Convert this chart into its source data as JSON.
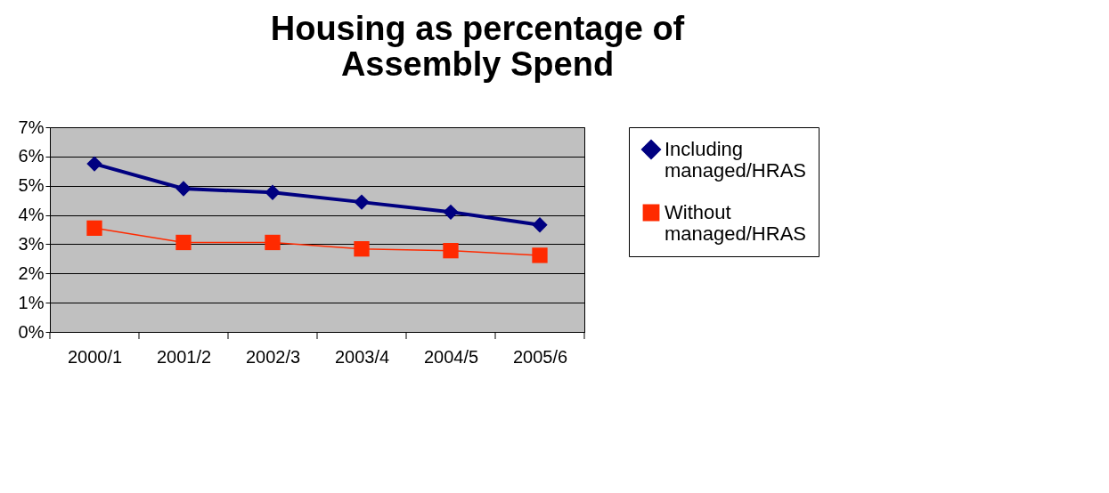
{
  "chart_data": {
    "type": "line",
    "title": "Housing as percentage of Assembly Spend",
    "categories": [
      "2000/1",
      "2001/2",
      "2002/3",
      "2003/4",
      "2004/5",
      "2005/6"
    ],
    "series": [
      {
        "name": "Including managed/HRAS",
        "color": "#000080",
        "marker": "diamond",
        "values": [
          5.75,
          4.9,
          4.77,
          4.44,
          4.1,
          3.66
        ]
      },
      {
        "name": "Without managed/HRAS",
        "color": "#ff2a00",
        "marker": "square",
        "values": [
          3.55,
          3.06,
          3.06,
          2.84,
          2.78,
          2.62
        ]
      }
    ],
    "ylim": [
      0,
      7
    ],
    "yticks": [
      {
        "value": 0,
        "label": "0%"
      },
      {
        "value": 1,
        "label": "1%"
      },
      {
        "value": 2,
        "label": "2%"
      },
      {
        "value": 3,
        "label": "3%"
      },
      {
        "value": 4,
        "label": "4%"
      },
      {
        "value": 5,
        "label": "5%"
      },
      {
        "value": 6,
        "label": "6%"
      },
      {
        "value": 7,
        "label": "7%"
      }
    ],
    "grid": "y",
    "legend": "right"
  }
}
